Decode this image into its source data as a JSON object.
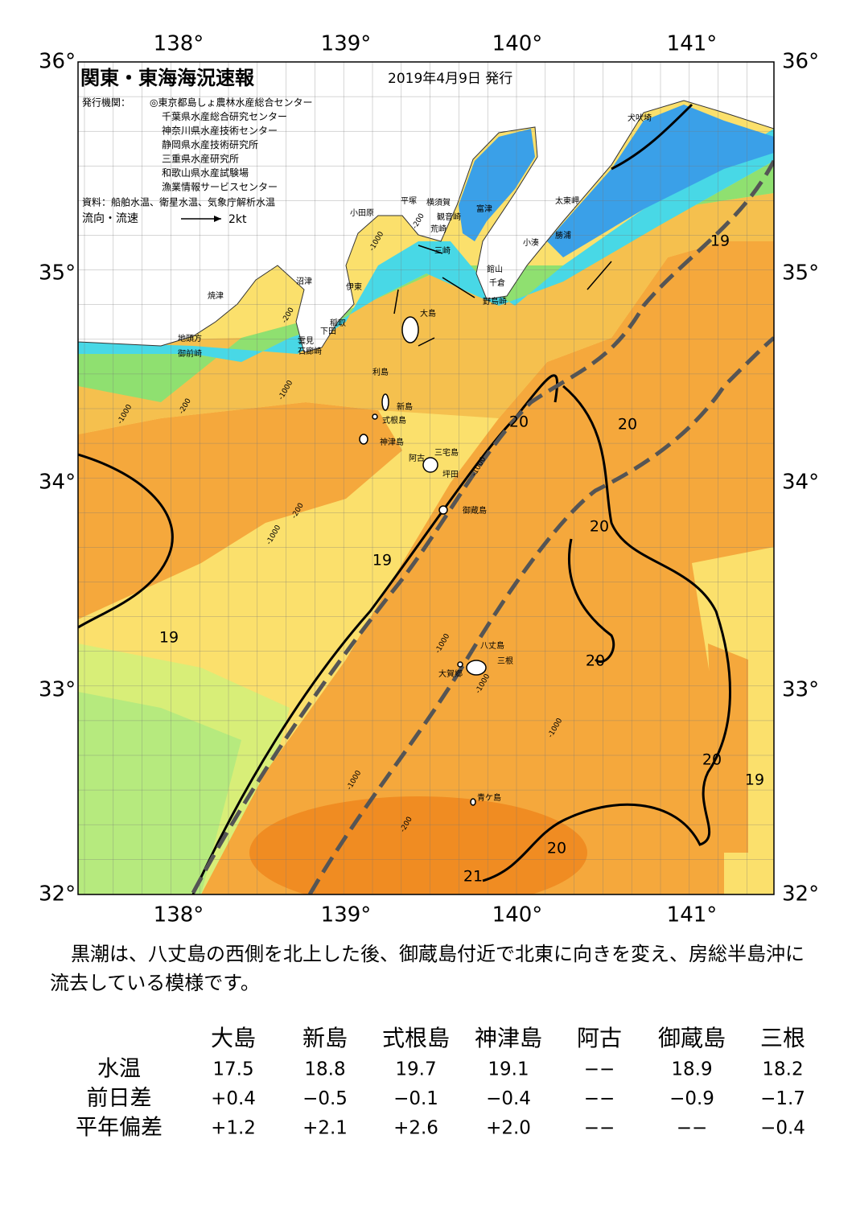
{
  "header": {
    "title": "関東・東海海況速報",
    "date": "2019年4月9日 発行"
  },
  "issuers": {
    "label": "発行機関：",
    "items": [
      "◎東京都島しょ農林水産総合センター",
      "千葉県水産総合研究センター",
      "神奈川県水産技術センター",
      "静岡県水産技術研究所",
      "三重県水産研究所",
      "和歌山県水産試験場",
      "漁業情報サービスセンター"
    ]
  },
  "source": "資料：船舶水温、衛星水温、気象庁解析水温",
  "legend": {
    "label": "流向・流速",
    "speed": "2kt"
  },
  "axes": {
    "lon": [
      "138°",
      "139°",
      "140°",
      "141°"
    ],
    "lat": [
      "36°",
      "35°",
      "34°",
      "33°",
      "32°"
    ]
  },
  "places": [
    "犬吠埼",
    "太東岬",
    "勝浦",
    "小湊",
    "富津",
    "横須賀",
    "平塚",
    "小田原",
    "観音崎",
    "荒崎",
    "三崎",
    "館山",
    "千倉",
    "野島崎",
    "大島",
    "沼津",
    "伊東",
    "焼津",
    "稲取",
    "下田",
    "雲見",
    "石廊崎",
    "地頭方",
    "御前崎",
    "利島",
    "新島",
    "式根島",
    "神津島",
    "三宅島",
    "阿古",
    "坪田",
    "御蔵島",
    "八丈島",
    "三根",
    "大賀郷",
    "青ケ島"
  ],
  "contours": [
    "19",
    "20",
    "20",
    "20",
    "19",
    "19",
    "20",
    "20",
    "19",
    "20",
    "21"
  ],
  "depths": [
    "-200",
    "-1000",
    "-200",
    "-1000",
    "-200",
    "-1000",
    "-200",
    "-1000",
    "-1000",
    "-1000",
    "-1000",
    "-1000",
    "-200",
    "-1000"
  ],
  "description": "黒潮は、八丈島の西側を北上した後、御蔵島付近で北東に向きを変え、房総半島沖に流去している模様です。",
  "table": {
    "columns": [
      "大島",
      "新島",
      "式根島",
      "神津島",
      "阿古",
      "御蔵島",
      "三根"
    ],
    "rows": [
      {
        "label": "水温",
        "cells": [
          "17.5",
          "18.8",
          "19.7",
          "19.1",
          "−−",
          "18.9",
          "18.2"
        ]
      },
      {
        "label": "前日差",
        "cells": [
          "+0.4",
          "−0.5",
          "−0.1",
          "−0.4",
          "−−",
          "−0.9",
          "−1.7"
        ]
      },
      {
        "label": "平年偏差",
        "cells": [
          "+1.2",
          "+2.1",
          "+2.6",
          "+2.0",
          "−−",
          "−−",
          "−0.4"
        ]
      }
    ]
  }
}
